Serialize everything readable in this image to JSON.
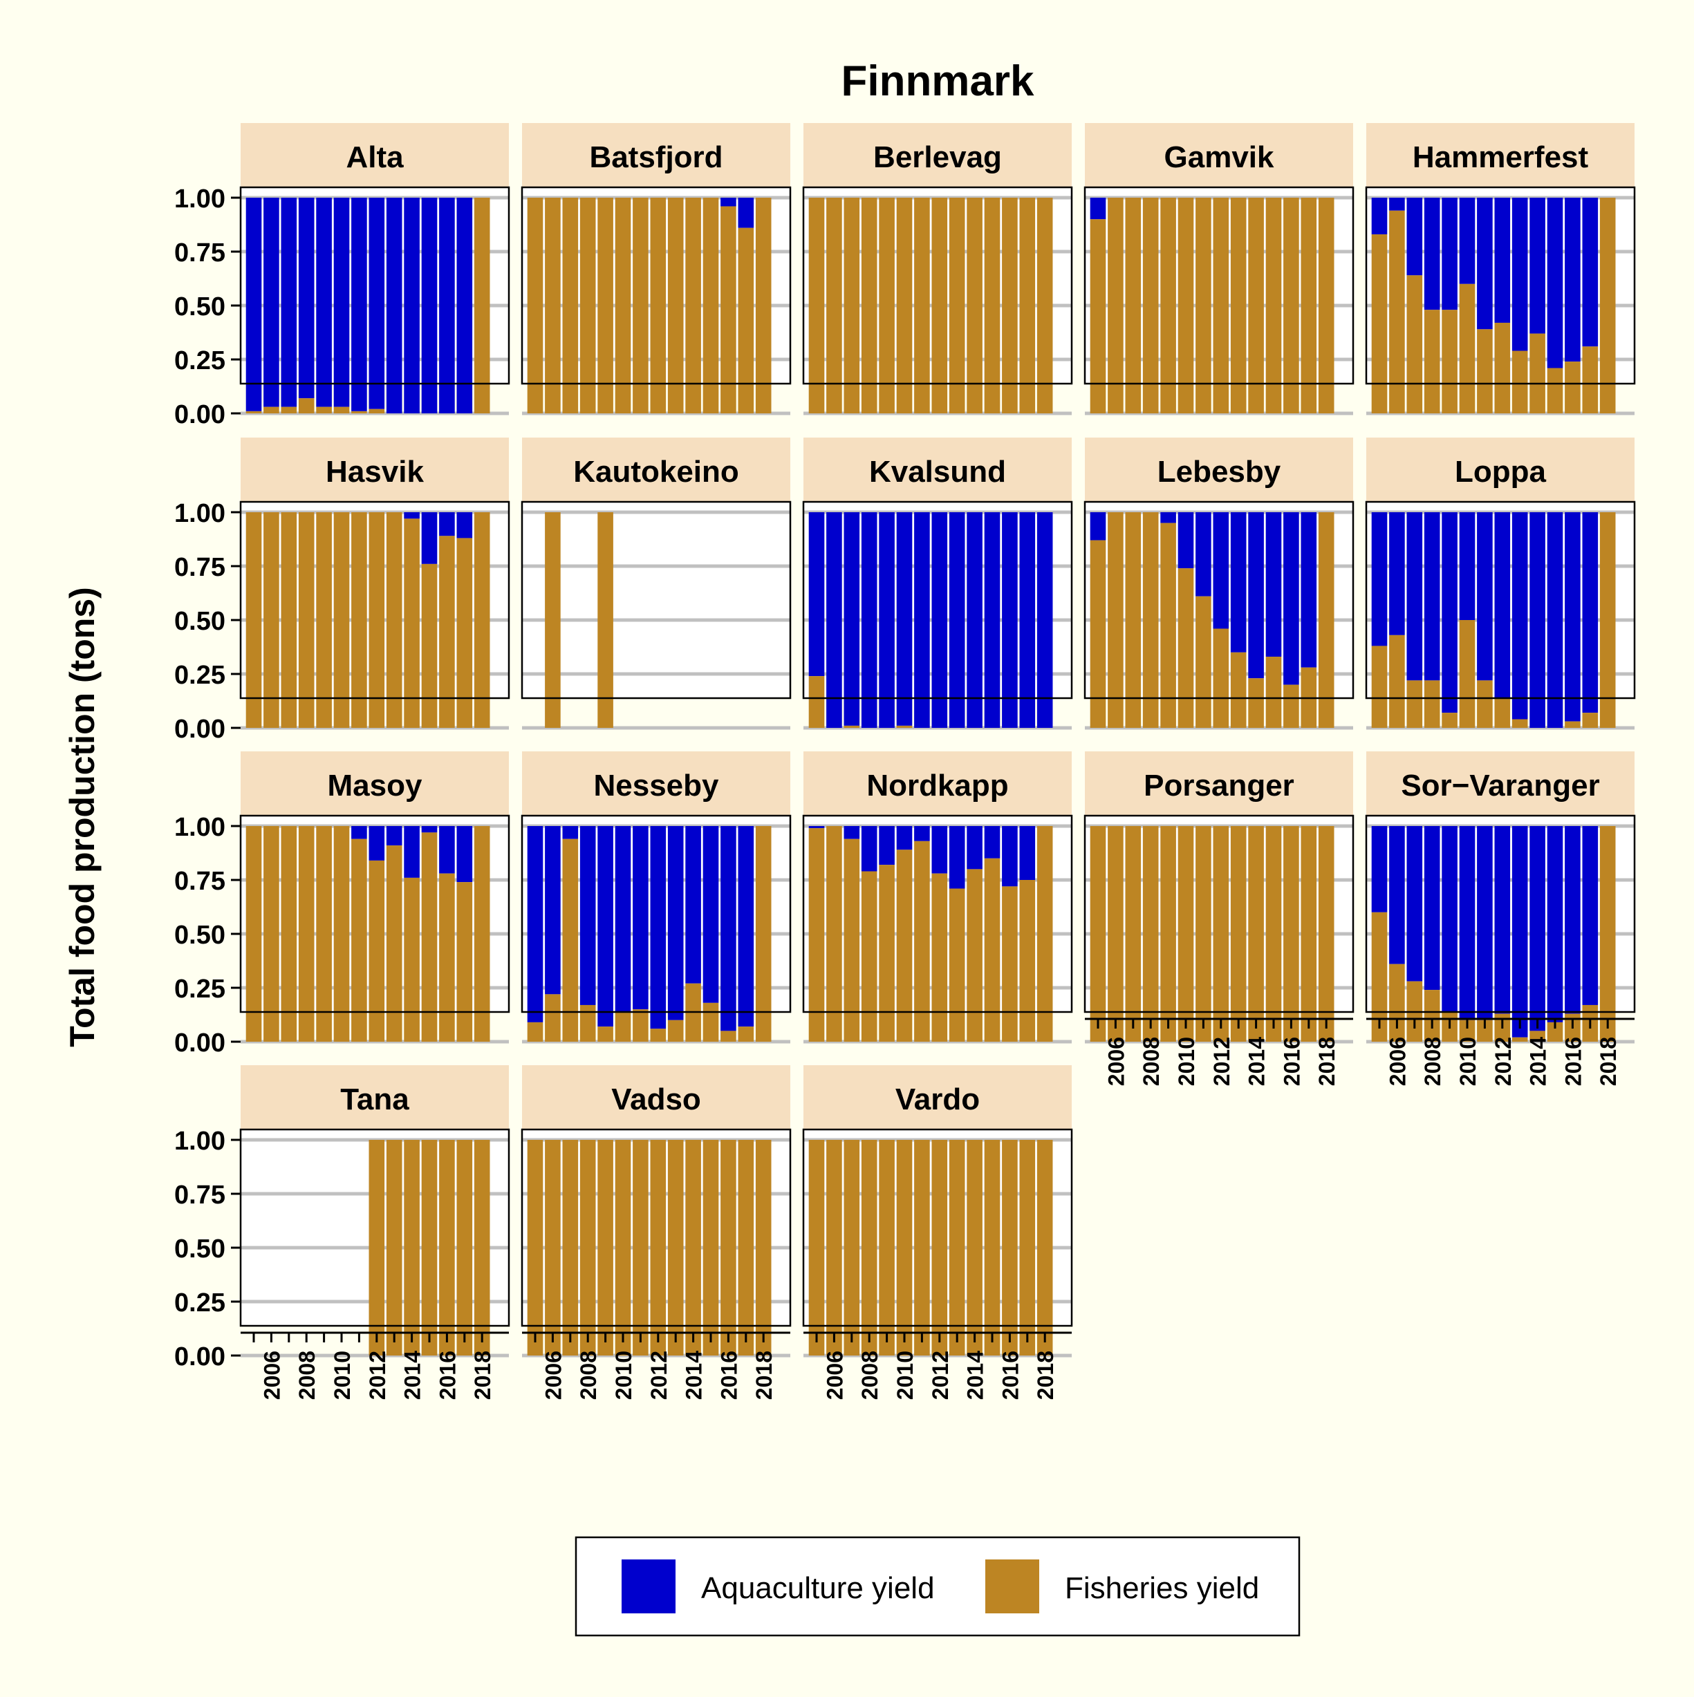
{
  "chart_data": {
    "type": "bar",
    "stacked": true,
    "title": "Finnmark",
    "xlabel": "",
    "ylabel": "Total food production (tons)",
    "ylim": [
      0,
      1
    ],
    "y_ticks": [
      "0.00",
      "0.25",
      "0.50",
      "0.75",
      "1.00"
    ],
    "x": [
      2005,
      2006,
      2007,
      2008,
      2009,
      2010,
      2011,
      2012,
      2013,
      2014,
      2015,
      2016,
      2017,
      2018
    ],
    "x_tick_labels": [
      "2006",
      "2008",
      "2010",
      "2012",
      "2014",
      "2016",
      "2018"
    ],
    "grid": true,
    "legend_position": "bottom",
    "legend": [
      {
        "name": "Aquaculture yield",
        "color": "#0000cd"
      },
      {
        "name": "Fisheries yield",
        "color": "#bd8523"
      }
    ],
    "panel_strip_color": "#f6dfc0",
    "panels": [
      {
        "name": "Alta",
        "fisheries": [
          0.01,
          0.03,
          0.03,
          0.07,
          0.03,
          0.03,
          0.01,
          0.02,
          0.0,
          0.0,
          0.0,
          0.0,
          0.0,
          1.0
        ]
      },
      {
        "name": "Batsfjord",
        "fisheries": [
          1,
          1,
          1,
          1,
          1,
          1,
          1,
          1,
          1,
          1,
          1,
          0.96,
          0.86,
          1
        ]
      },
      {
        "name": "Berlevag",
        "fisheries": [
          1,
          1,
          1,
          1,
          1,
          1,
          1,
          1,
          1,
          1,
          1,
          1,
          1,
          1
        ]
      },
      {
        "name": "Gamvik",
        "fisheries": [
          0.9,
          1,
          1,
          1,
          1,
          1,
          1,
          1,
          1,
          1,
          1,
          1,
          1,
          1
        ]
      },
      {
        "name": "Hammerfest",
        "fisheries": [
          0.83,
          0.94,
          0.64,
          0.48,
          0.48,
          0.6,
          0.39,
          0.42,
          0.29,
          0.37,
          0.21,
          0.24,
          0.31,
          1.0
        ]
      },
      {
        "name": "Hasvik",
        "fisheries": [
          1,
          1,
          1,
          1,
          1,
          1,
          1,
          1,
          1,
          0.97,
          0.76,
          0.89,
          0.88,
          1
        ]
      },
      {
        "name": "Kautokeino",
        "fisheries": [
          null,
          1,
          null,
          null,
          1,
          null,
          null,
          null,
          null,
          null,
          null,
          null,
          null,
          null
        ]
      },
      {
        "name": "Kvalsund",
        "fisheries": [
          0.24,
          0.0,
          0.01,
          0.0,
          0.0,
          0.01,
          0.0,
          0.0,
          0.0,
          0.0,
          0.0,
          0.0,
          0.0,
          0.0
        ]
      },
      {
        "name": "Lebesby",
        "fisheries": [
          0.87,
          1,
          1,
          1,
          0.95,
          0.74,
          0.61,
          0.46,
          0.35,
          0.23,
          0.33,
          0.2,
          0.28,
          1.0
        ]
      },
      {
        "name": "Loppa",
        "fisheries": [
          0.38,
          0.43,
          0.22,
          0.22,
          0.07,
          0.5,
          0.22,
          0.14,
          0.04,
          0.0,
          0.0,
          0.03,
          0.07,
          1.0
        ]
      },
      {
        "name": "Masoy",
        "fisheries": [
          1,
          1,
          1,
          1,
          1,
          1,
          0.94,
          0.84,
          0.91,
          0.76,
          0.97,
          0.78,
          0.74,
          1.0
        ]
      },
      {
        "name": "Nesseby",
        "fisheries": [
          0.09,
          0.22,
          0.94,
          0.17,
          0.07,
          0.14,
          0.15,
          0.06,
          0.1,
          0.27,
          0.18,
          0.05,
          0.07,
          1.0
        ]
      },
      {
        "name": "Nordkapp",
        "fisheries": [
          0.99,
          1.0,
          0.94,
          0.79,
          0.82,
          0.89,
          0.93,
          0.78,
          0.71,
          0.8,
          0.85,
          0.72,
          0.75,
          1.0
        ]
      },
      {
        "name": "Porsanger",
        "fisheries": [
          1,
          1,
          1,
          1,
          1,
          1,
          1,
          1,
          1,
          1,
          1,
          1,
          1,
          1
        ]
      },
      {
        "name": "Sor−Varanger",
        "fisheries": [
          0.6,
          0.36,
          0.28,
          0.24,
          0.14,
          0.1,
          0.1,
          0.13,
          0.02,
          0.05,
          0.09,
          0.13,
          0.17,
          1.0
        ]
      },
      {
        "name": "Tana",
        "fisheries": [
          null,
          null,
          null,
          null,
          null,
          null,
          null,
          1,
          1,
          1,
          1,
          1,
          1,
          1
        ]
      },
      {
        "name": "Vadso",
        "fisheries": [
          1,
          1,
          1,
          1,
          1,
          1,
          1,
          1,
          1,
          1,
          1,
          1,
          1,
          1
        ]
      },
      {
        "name": "Vardo",
        "fisheries": [
          1,
          1,
          1,
          1,
          1,
          1,
          1,
          1,
          1,
          1,
          1,
          1,
          1,
          1
        ]
      }
    ]
  }
}
